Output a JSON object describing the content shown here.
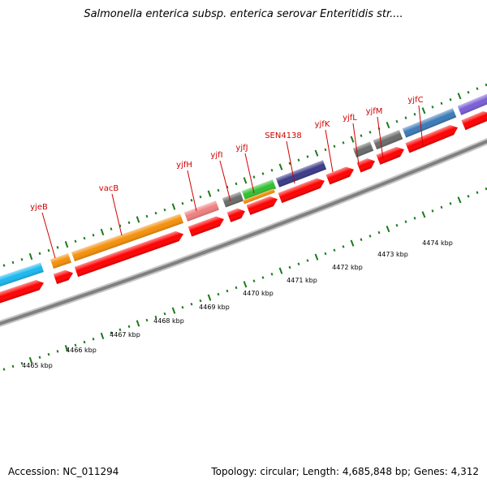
{
  "title": "Salmonella enterica subsp. enterica serovar Enteritidis str....",
  "footer": {
    "accession": "Accession: NC_011294",
    "summary": "Topology: circular; Length: 4,685,848 bp; Genes: 4,312"
  },
  "scale_labels": [
    "4465 kbp",
    "4466 kbp",
    "4467 kbp",
    "4468 kbp",
    "4469 kbp",
    "4470 kbp",
    "4471 kbp",
    "4472 kbp",
    "4473 kbp",
    "4474 kbp"
  ],
  "gene_labels": [
    "yjeB",
    "vacB",
    "yjfH",
    "yjfI",
    "yjfJ",
    "SEN4138",
    "yjfK",
    "yjfL",
    "yjfM",
    "yjfC"
  ],
  "colors": {
    "backbone": "#808080",
    "cds_red": "#ff0000",
    "tick_green": "#1a7a1a",
    "label_red": "#d40000",
    "cyan": "#1ab8f0",
    "orange": "#f5900a",
    "pink": "#f08080",
    "grey": "#6b6b6b",
    "green": "#30c030",
    "navy": "#3a3a88",
    "steelblue": "#3c7ab8",
    "purple": "#7a5ed8"
  }
}
